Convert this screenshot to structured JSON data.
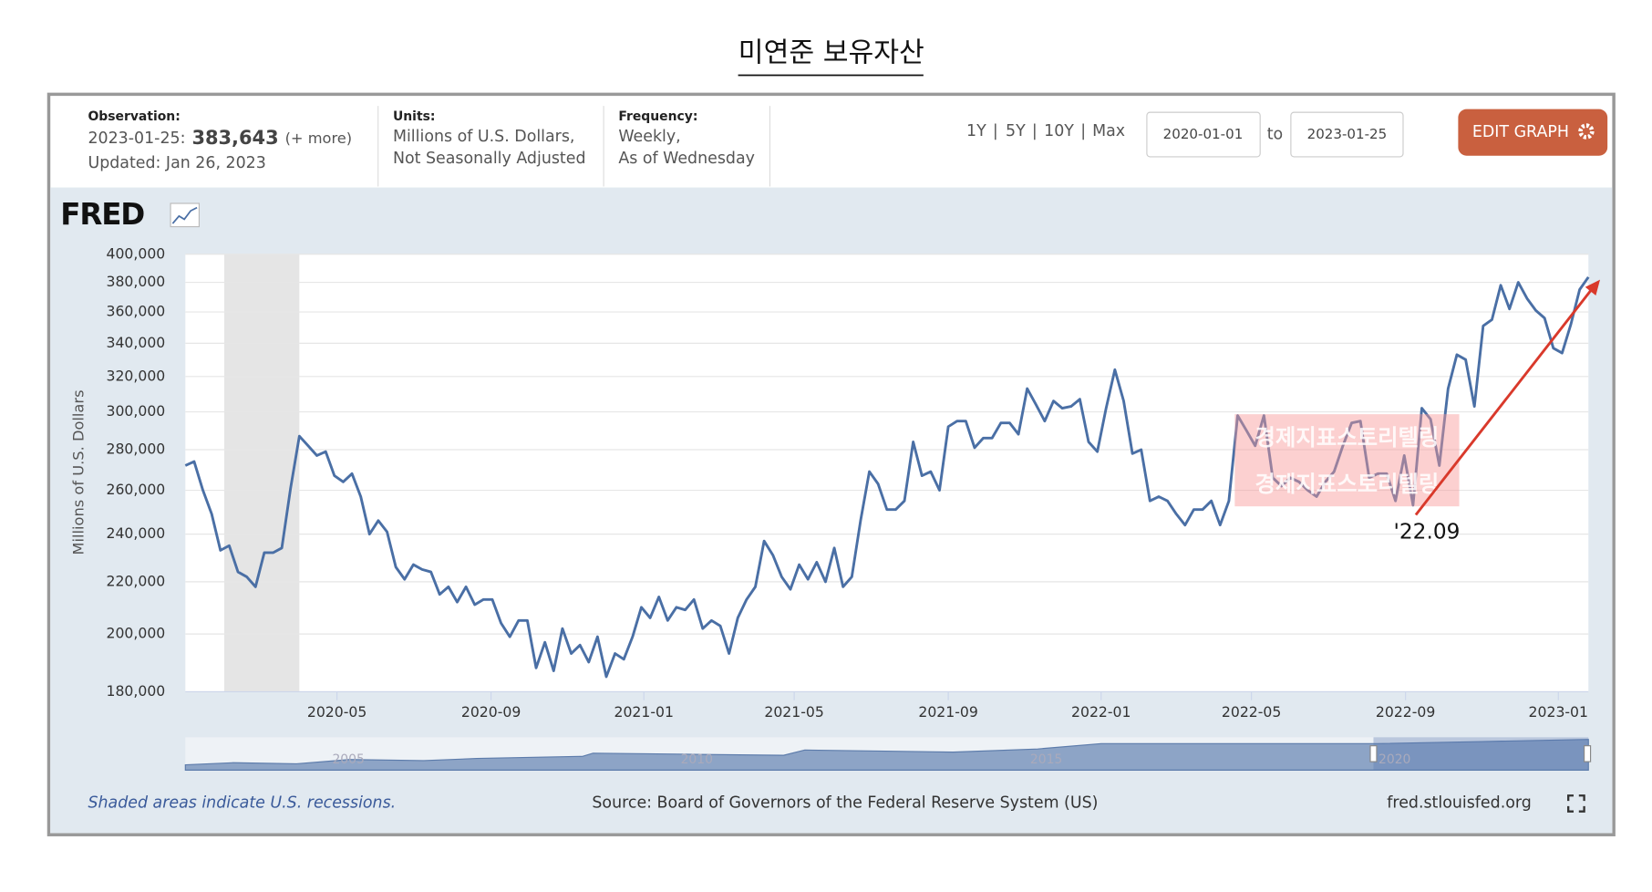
{
  "page": {
    "title": "미연준 보유자산"
  },
  "header": {
    "observation_label": "Observation:",
    "observation_date": "2023-01-25:",
    "observation_value": "383,643",
    "more": "(+ more)",
    "updated": "Updated: Jan 26, 2023",
    "units_label": "Units:",
    "units": [
      "Millions of U.S. Dollars,",
      "Not Seasonally Adjusted"
    ],
    "frequency_label": "Frequency:",
    "frequency": [
      "Weekly,",
      "As of Wednesday"
    ],
    "ranges": [
      "1Y",
      "5Y",
      "10Y",
      "Max"
    ],
    "separator": "|",
    "start_date": "2020-01-01",
    "to": "to",
    "end_date": "2023-01-25",
    "edit_button": "EDIT GRAPH",
    "logo": "FRED"
  },
  "chart_data": {
    "type": "line",
    "ylabel": "Millions of U.S. Dollars",
    "color": "#4a6fa5",
    "log_scale": true,
    "grid": true,
    "recession": [
      "2020-02",
      "2020-04"
    ],
    "x": [
      "2020-01-01",
      "2020-01-08",
      "2020-01-15",
      "2020-01-22",
      "2020-01-29",
      "2020-02-05",
      "2020-02-12",
      "2020-02-19",
      "2020-02-26",
      "2020-03-04",
      "2020-03-11",
      "2020-03-18",
      "2020-03-25",
      "2020-04-01",
      "2020-04-08",
      "2020-04-15",
      "2020-04-22",
      "2020-04-29",
      "2020-05-06",
      "2020-05-13",
      "2020-05-20",
      "2020-05-27",
      "2020-06-03",
      "2020-06-10",
      "2020-06-17",
      "2020-06-24",
      "2020-07-01",
      "2020-07-08",
      "2020-07-15",
      "2020-07-22",
      "2020-07-29",
      "2020-08-05",
      "2020-08-12",
      "2020-08-19",
      "2020-08-26",
      "2020-09-02",
      "2020-09-09",
      "2020-09-16",
      "2020-09-23",
      "2020-09-30",
      "2020-10-07",
      "2020-10-14",
      "2020-10-21",
      "2020-10-28",
      "2020-11-04",
      "2020-11-11",
      "2020-11-18",
      "2020-11-25",
      "2020-12-02",
      "2020-12-09",
      "2020-12-16",
      "2020-12-23",
      "2020-12-30",
      "2021-01-06",
      "2021-01-13",
      "2021-01-20",
      "2021-01-27",
      "2021-02-03",
      "2021-02-10",
      "2021-02-17",
      "2021-02-24",
      "2021-03-03",
      "2021-03-10",
      "2021-03-17",
      "2021-03-24",
      "2021-03-31",
      "2021-04-07",
      "2021-04-14",
      "2021-04-21",
      "2021-04-28",
      "2021-05-05",
      "2021-05-12",
      "2021-05-19",
      "2021-05-26",
      "2021-06-02",
      "2021-06-09",
      "2021-06-16",
      "2021-06-23",
      "2021-06-30",
      "2021-07-07",
      "2021-07-14",
      "2021-07-21",
      "2021-07-28",
      "2021-08-04",
      "2021-08-11",
      "2021-08-18",
      "2021-08-25",
      "2021-09-01",
      "2021-09-08",
      "2021-09-15",
      "2021-09-22",
      "2021-09-29",
      "2021-10-06",
      "2021-10-13",
      "2021-10-20",
      "2021-10-27",
      "2021-11-03",
      "2021-11-10",
      "2021-11-17",
      "2021-11-24",
      "2021-12-01",
      "2021-12-08",
      "2021-12-15",
      "2021-12-22",
      "2021-12-29",
      "2022-01-05",
      "2022-01-12",
      "2022-01-19",
      "2022-01-26",
      "2022-02-02",
      "2022-02-09",
      "2022-02-16",
      "2022-02-23",
      "2022-03-02",
      "2022-03-09",
      "2022-03-16",
      "2022-03-23",
      "2022-03-30",
      "2022-04-06",
      "2022-04-13",
      "2022-04-20",
      "2022-04-27",
      "2022-05-04",
      "2022-05-11",
      "2022-05-18",
      "2022-05-25",
      "2022-06-01",
      "2022-06-08",
      "2022-06-15",
      "2022-06-22",
      "2022-06-29",
      "2022-07-06",
      "2022-07-13",
      "2022-07-20",
      "2022-07-27",
      "2022-08-03",
      "2022-08-10",
      "2022-08-17",
      "2022-08-24",
      "2022-08-31",
      "2022-09-07",
      "2022-09-14",
      "2022-09-21",
      "2022-09-28",
      "2022-10-05",
      "2022-10-12",
      "2022-10-19",
      "2022-10-26",
      "2022-11-02",
      "2022-11-09",
      "2022-11-16",
      "2022-11-23",
      "2022-11-30",
      "2022-12-07",
      "2022-12-14",
      "2022-12-21",
      "2022-12-28",
      "2023-01-04",
      "2023-01-11",
      "2023-01-18",
      "2023-01-25"
    ],
    "values": [
      272000,
      274000,
      260000,
      249000,
      233000,
      235000,
      224000,
      222000,
      218000,
      232000,
      232000,
      234000,
      261000,
      287000,
      282000,
      277000,
      279000,
      267000,
      264000,
      268000,
      257000,
      240000,
      246000,
      241000,
      226000,
      221000,
      227000,
      225000,
      224000,
      215000,
      218000,
      212000,
      218000,
      211000,
      213000,
      213000,
      204000,
      199000,
      205000,
      205000,
      188000,
      197000,
      187000,
      202000,
      193000,
      196000,
      190000,
      199000,
      185000,
      193000,
      191000,
      199000,
      210000,
      206000,
      214000,
      205000,
      210000,
      209000,
      213000,
      202000,
      205000,
      203000,
      193000,
      206000,
      213000,
      218000,
      237000,
      231000,
      222000,
      217000,
      227000,
      221000,
      228000,
      220000,
      234000,
      218000,
      222000,
      246000,
      269000,
      263000,
      251000,
      251000,
      255000,
      284000,
      267000,
      269000,
      260000,
      292000,
      295000,
      295000,
      281000,
      286000,
      286000,
      294000,
      294000,
      288000,
      313000,
      304000,
      295000,
      306000,
      302000,
      303000,
      307000,
      284000,
      279000,
      302000,
      324000,
      306000,
      278000,
      280000,
      255000,
      257000,
      255000,
      249000,
      244000,
      251000,
      251000,
      255000,
      244000,
      255000,
      298000,
      290000,
      282000,
      298000,
      266000,
      262000,
      266000,
      264000,
      260000,
      257000,
      264000,
      269000,
      282000,
      294000,
      295000,
      266000,
      268000,
      268000,
      255000,
      277000,
      253000,
      302000,
      296000,
      272000,
      313000,
      333000,
      330000,
      303000,
      351000,
      355000,
      378000,
      362000,
      380000,
      369000,
      361000,
      356000,
      337000,
      334000,
      352000,
      375000,
      383643
    ],
    "xlim": [
      "2020-01-01",
      "2023-01-25"
    ],
    "xticks": [
      "2020-05",
      "2020-09",
      "2021-01",
      "2021-05",
      "2021-09",
      "2022-01",
      "2022-05",
      "2022-09",
      "2023-01"
    ],
    "ylim": [
      180000,
      400000
    ],
    "yticks": [
      {
        "value": 180000,
        "label": "180,000"
      },
      {
        "value": 200000,
        "label": "200,000"
      },
      {
        "value": 220000,
        "label": "220,000"
      },
      {
        "value": 240000,
        "label": "240,000"
      },
      {
        "value": 260000,
        "label": "260,000"
      },
      {
        "value": 280000,
        "label": "280,000"
      },
      {
        "value": 300000,
        "label": "300,000"
      },
      {
        "value": 320000,
        "label": "320,000"
      },
      {
        "value": 340000,
        "label": "340,000"
      },
      {
        "value": 360000,
        "label": "360,000"
      },
      {
        "value": 380000,
        "label": "380,000"
      },
      {
        "value": 400000,
        "label": "400,000"
      }
    ],
    "annotation": "'22.09",
    "watermark": [
      "경제지표스토리텔링",
      "경제지표스토리텔링"
    ],
    "navigator_labels": [
      "2005",
      "2010",
      "2015",
      "2020"
    ]
  },
  "footer": {
    "recession_note": "Shaded areas indicate U.S. recessions.",
    "source": "Source: Board of Governors of the Federal Reserve System (US)",
    "site": "fred.stlouisfed.org"
  }
}
